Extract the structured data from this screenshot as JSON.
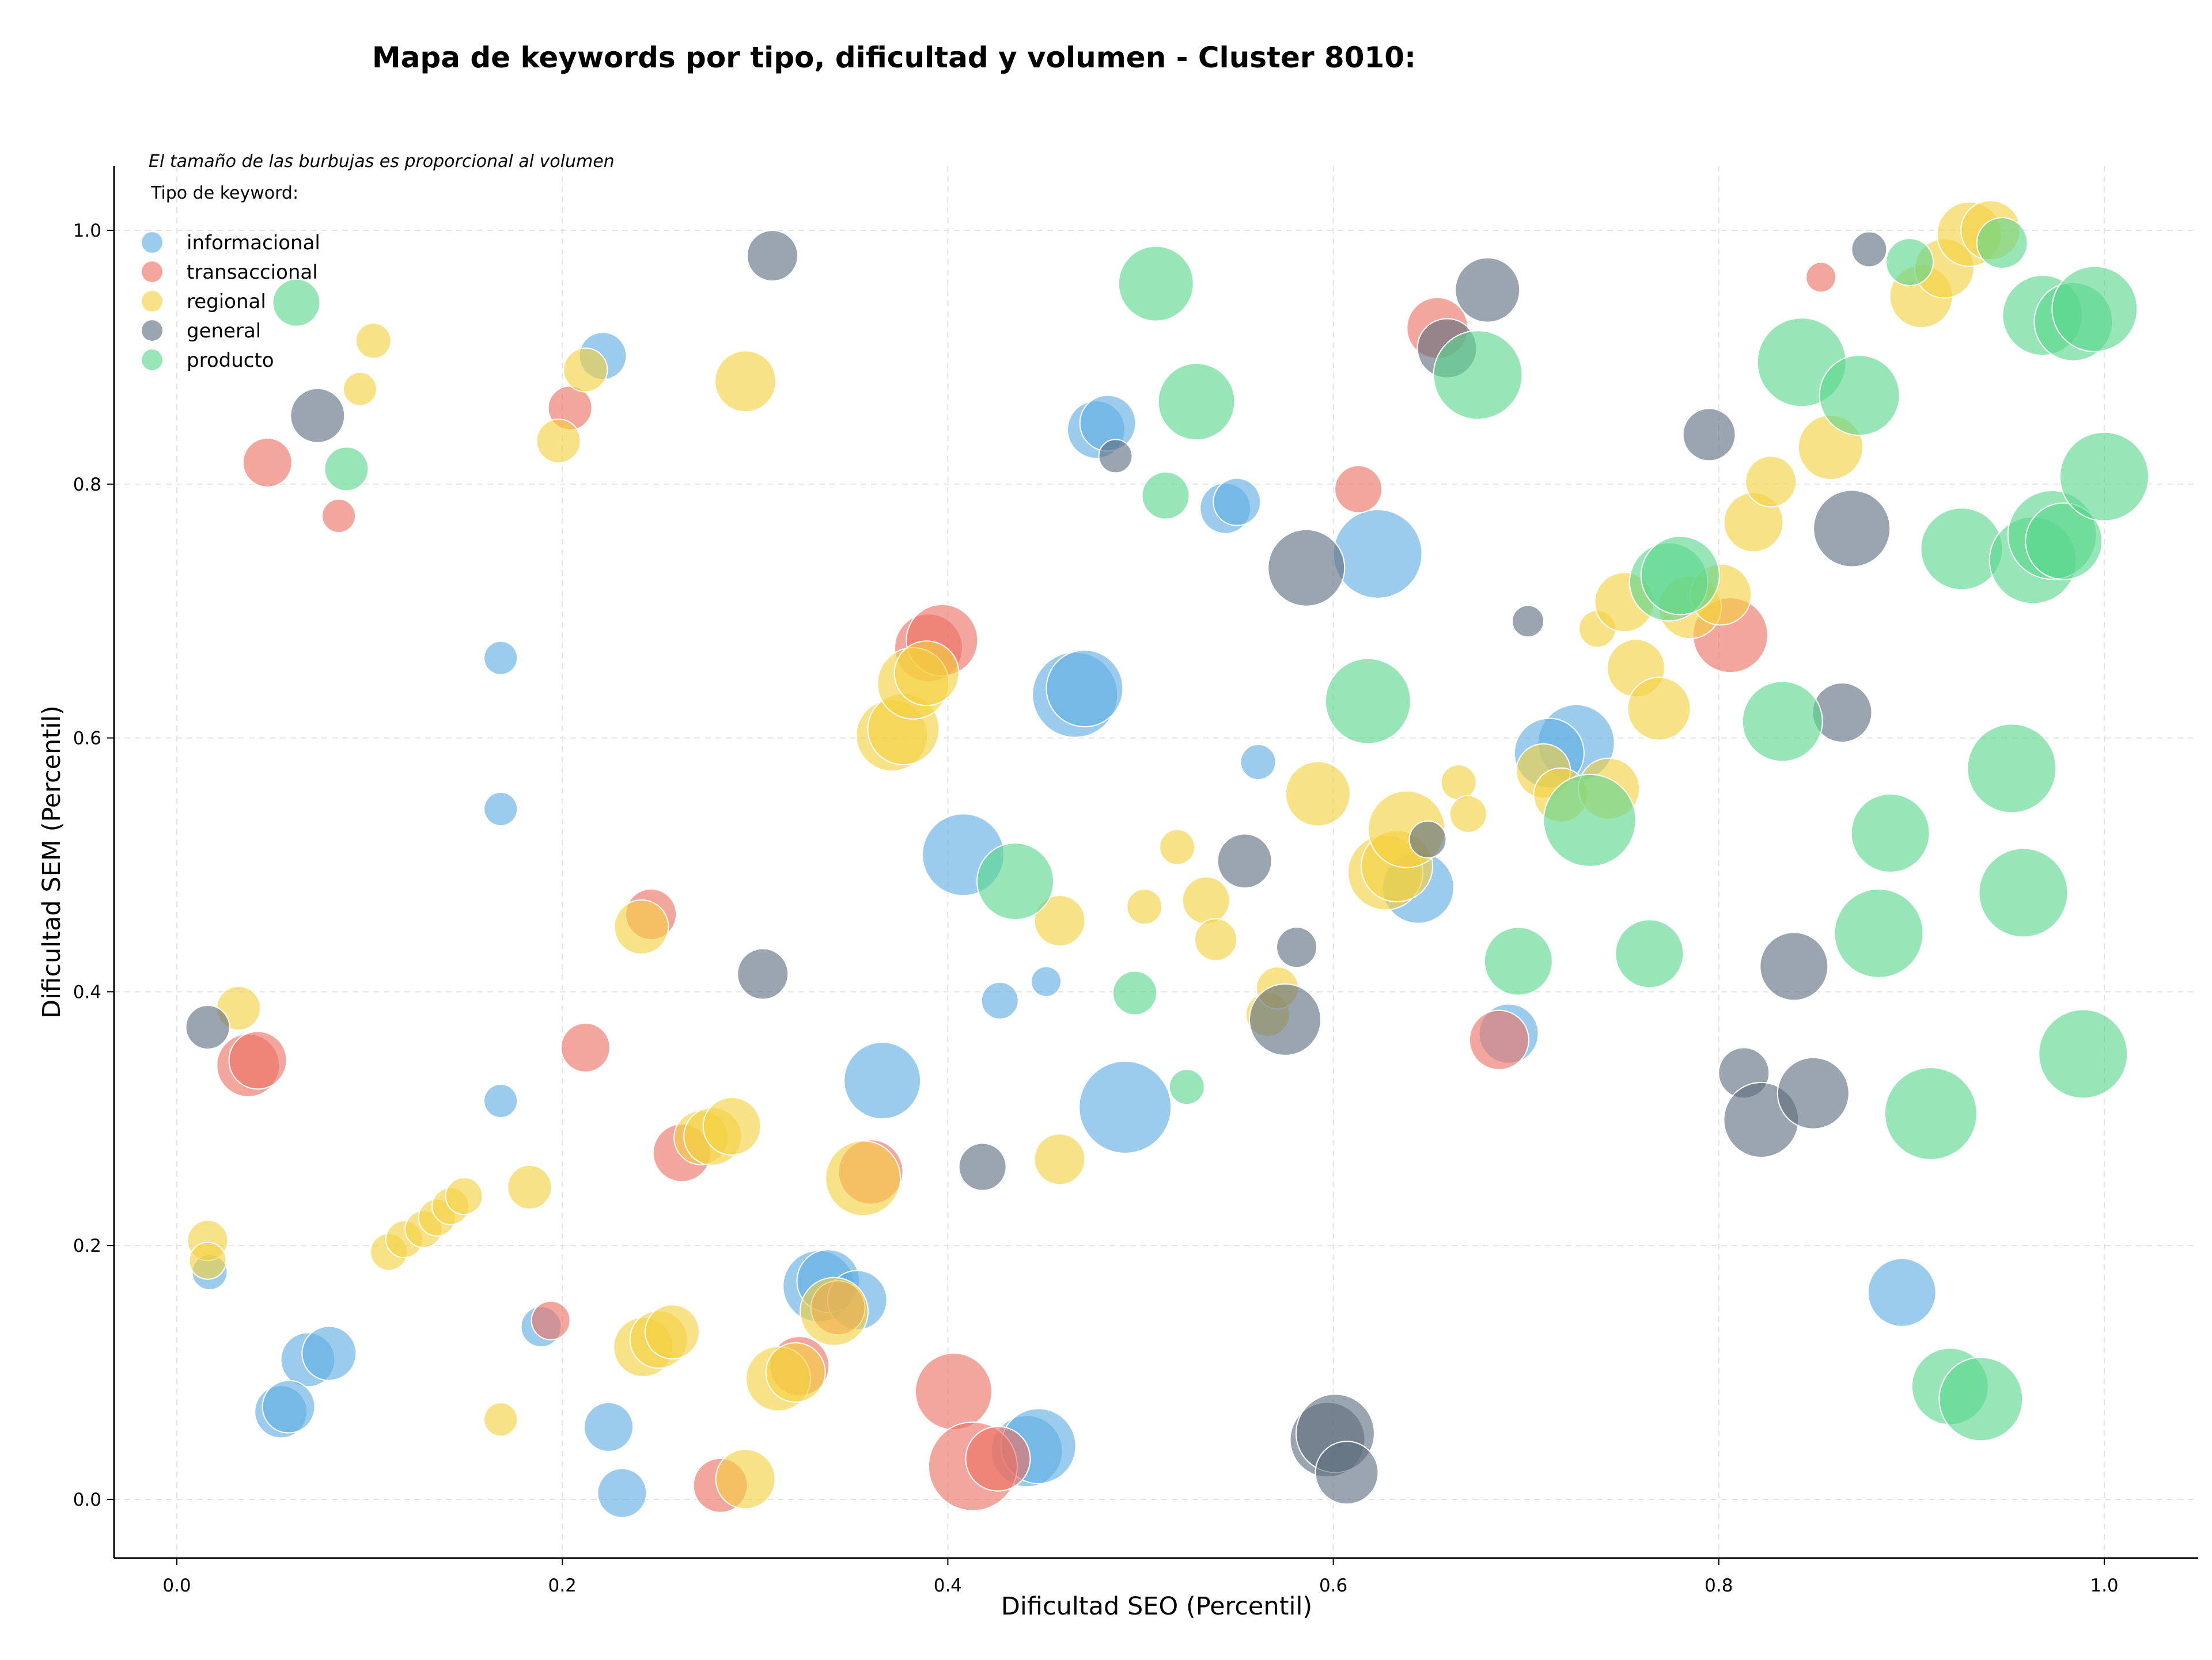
{
  "chart_data": {
    "type": "scatter",
    "title": "Mapa de keywords por tipo, dificultad y volumen - Cluster 8010:",
    "xlabel": "Dificultad SEO (Percentil)",
    "ylabel": "Dificultad SEM (Percentil)",
    "xlim": [
      -0.033,
      1.048
    ],
    "ylim": [
      -0.044,
      1.05
    ],
    "x_ticks": [
      "0.0",
      "0.2",
      "0.4",
      "0.6",
      "0.8",
      "1.0"
    ],
    "y_ticks": [
      "0.0",
      "0.2",
      "0.4",
      "0.6",
      "0.8",
      "1.0"
    ],
    "grid": true,
    "annotation": "El tamaño de las burbujas es proporcional al volumen",
    "legend": {
      "title": "Tipo de keyword:",
      "position": "top-left",
      "entries": [
        "informacional",
        "transaccional",
        "regional",
        "general",
        "producto"
      ]
    },
    "series": [
      {
        "name": "informacional",
        "color": "#5dade2",
        "points": [
          {
            "x": 0.221,
            "y": 0.901,
            "size": 1.6
          },
          {
            "x": 0.168,
            "y": 0.663,
            "size": 0.8
          },
          {
            "x": 0.168,
            "y": 0.544,
            "size": 0.8
          },
          {
            "x": 0.168,
            "y": 0.314,
            "size": 0.8
          },
          {
            "x": 0.017,
            "y": 0.179,
            "size": 0.9
          },
          {
            "x": 0.068,
            "y": 0.11,
            "size": 2.0
          },
          {
            "x": 0.079,
            "y": 0.115,
            "size": 2.0
          },
          {
            "x": 0.054,
            "y": 0.069,
            "size": 1.9
          },
          {
            "x": 0.058,
            "y": 0.073,
            "size": 1.9
          },
          {
            "x": 0.189,
            "y": 0.136,
            "size": 1.2
          },
          {
            "x": 0.224,
            "y": 0.057,
            "size": 1.7
          },
          {
            "x": 0.231,
            "y": 0.005,
            "size": 1.7
          },
          {
            "x": 0.333,
            "y": 0.168,
            "size": 3.0
          },
          {
            "x": 0.338,
            "y": 0.172,
            "size": 2.5
          },
          {
            "x": 0.353,
            "y": 0.157,
            "size": 2.3
          },
          {
            "x": 0.366,
            "y": 0.33,
            "size": 3.3
          },
          {
            "x": 0.408,
            "y": 0.508,
            "size": 3.6
          },
          {
            "x": 0.427,
            "y": 0.393,
            "size": 1.0
          },
          {
            "x": 0.451,
            "y": 0.408,
            "size": 0.6
          },
          {
            "x": 0.441,
            "y": 0.038,
            "size": 3.0
          },
          {
            "x": 0.447,
            "y": 0.042,
            "size": 3.2
          },
          {
            "x": 0.466,
            "y": 0.634,
            "size": 3.8
          },
          {
            "x": 0.471,
            "y": 0.639,
            "size": 3.3
          },
          {
            "x": 0.477,
            "y": 0.843,
            "size": 2.2
          },
          {
            "x": 0.483,
            "y": 0.848,
            "size": 2.1
          },
          {
            "x": 0.492,
            "y": 0.309,
            "size": 4.2
          },
          {
            "x": 0.544,
            "y": 0.781,
            "size": 1.8
          },
          {
            "x": 0.55,
            "y": 0.786,
            "size": 1.6
          },
          {
            "x": 0.561,
            "y": 0.581,
            "size": 0.9
          },
          {
            "x": 0.623,
            "y": 0.745,
            "size": 4.0
          },
          {
            "x": 0.644,
            "y": 0.482,
            "size": 3.0
          },
          {
            "x": 0.691,
            "y": 0.367,
            "size": 2.3
          },
          {
            "x": 0.726,
            "y": 0.596,
            "size": 3.3
          },
          {
            "x": 0.712,
            "y": 0.588,
            "size": 2.9
          },
          {
            "x": 0.895,
            "y": 0.163,
            "size": 2.8
          }
        ]
      },
      {
        "name": "transaccional",
        "color": "#ec7063",
        "points": [
          {
            "x": 0.047,
            "y": 0.817,
            "size": 1.7
          },
          {
            "x": 0.084,
            "y": 0.775,
            "size": 0.8
          },
          {
            "x": 0.204,
            "y": 0.86,
            "size": 1.4
          },
          {
            "x": 0.037,
            "y": 0.342,
            "size": 2.5
          },
          {
            "x": 0.042,
            "y": 0.346,
            "size": 2.2
          },
          {
            "x": 0.212,
            "y": 0.356,
            "size": 1.7
          },
          {
            "x": 0.246,
            "y": 0.461,
            "size": 1.8
          },
          {
            "x": 0.262,
            "y": 0.273,
            "size": 2.2
          },
          {
            "x": 0.194,
            "y": 0.141,
            "size": 1.1
          },
          {
            "x": 0.282,
            "y": 0.011,
            "size": 2.0
          },
          {
            "x": 0.323,
            "y": 0.105,
            "size": 2.3
          },
          {
            "x": 0.343,
            "y": 0.151,
            "size": 2.0
          },
          {
            "x": 0.36,
            "y": 0.258,
            "size": 2.6
          },
          {
            "x": 0.39,
            "y": 0.671,
            "size": 2.8
          },
          {
            "x": 0.397,
            "y": 0.677,
            "size": 3.0
          },
          {
            "x": 0.403,
            "y": 0.085,
            "size": 3.3
          },
          {
            "x": 0.413,
            "y": 0.026,
            "size": 4.0
          },
          {
            "x": 0.426,
            "y": 0.032,
            "size": 2.6
          },
          {
            "x": 0.613,
            "y": 0.796,
            "size": 1.6
          },
          {
            "x": 0.654,
            "y": 0.923,
            "size": 2.4
          },
          {
            "x": 0.686,
            "y": 0.362,
            "size": 2.3
          },
          {
            "x": 0.806,
            "y": 0.681,
            "size": 3.2
          },
          {
            "x": 0.853,
            "y": 0.963,
            "size": 0.6
          }
        ]
      },
      {
        "name": "regional",
        "color": "#f4d03f",
        "points": [
          {
            "x": 0.095,
            "y": 0.875,
            "size": 0.8
          },
          {
            "x": 0.102,
            "y": 0.913,
            "size": 0.9
          },
          {
            "x": 0.212,
            "y": 0.89,
            "size": 1.4
          },
          {
            "x": 0.198,
            "y": 0.834,
            "size": 1.4
          },
          {
            "x": 0.295,
            "y": 0.881,
            "size": 2.4
          },
          {
            "x": 0.032,
            "y": 0.387,
            "size": 1.4
          },
          {
            "x": 0.016,
            "y": 0.204,
            "size": 1.2
          },
          {
            "x": 0.016,
            "y": 0.188,
            "size": 1.0
          },
          {
            "x": 0.11,
            "y": 0.195,
            "size": 1.0
          },
          {
            "x": 0.118,
            "y": 0.205,
            "size": 1.0
          },
          {
            "x": 0.128,
            "y": 0.213,
            "size": 1.0
          },
          {
            "x": 0.135,
            "y": 0.222,
            "size": 1.0
          },
          {
            "x": 0.142,
            "y": 0.231,
            "size": 1.0
          },
          {
            "x": 0.149,
            "y": 0.239,
            "size": 1.0
          },
          {
            "x": 0.183,
            "y": 0.246,
            "size": 1.4
          },
          {
            "x": 0.168,
            "y": 0.063,
            "size": 0.8
          },
          {
            "x": 0.241,
            "y": 0.451,
            "size": 2.0
          },
          {
            "x": 0.242,
            "y": 0.12,
            "size": 2.3
          },
          {
            "x": 0.25,
            "y": 0.126,
            "size": 2.2
          },
          {
            "x": 0.257,
            "y": 0.132,
            "size": 2.0
          },
          {
            "x": 0.272,
            "y": 0.285,
            "size": 2.0
          },
          {
            "x": 0.278,
            "y": 0.286,
            "size": 2.2
          },
          {
            "x": 0.288,
            "y": 0.294,
            "size": 2.2
          },
          {
            "x": 0.295,
            "y": 0.016,
            "size": 2.3
          },
          {
            "x": 0.312,
            "y": 0.095,
            "size": 2.6
          },
          {
            "x": 0.321,
            "y": 0.1,
            "size": 2.3
          },
          {
            "x": 0.341,
            "y": 0.148,
            "size": 2.8
          },
          {
            "x": 0.356,
            "y": 0.253,
            "size": 3.2
          },
          {
            "x": 0.371,
            "y": 0.602,
            "size": 3.0
          },
          {
            "x": 0.377,
            "y": 0.607,
            "size": 3.0
          },
          {
            "x": 0.382,
            "y": 0.643,
            "size": 3.0
          },
          {
            "x": 0.389,
            "y": 0.651,
            "size": 2.6
          },
          {
            "x": 0.458,
            "y": 0.456,
            "size": 1.8
          },
          {
            "x": 0.458,
            "y": 0.268,
            "size": 1.8
          },
          {
            "x": 0.502,
            "y": 0.467,
            "size": 0.9
          },
          {
            "x": 0.519,
            "y": 0.514,
            "size": 0.9
          },
          {
            "x": 0.534,
            "y": 0.472,
            "size": 1.6
          },
          {
            "x": 0.539,
            "y": 0.441,
            "size": 1.3
          },
          {
            "x": 0.566,
            "y": 0.382,
            "size": 1.4
          },
          {
            "x": 0.571,
            "y": 0.403,
            "size": 1.3
          },
          {
            "x": 0.592,
            "y": 0.556,
            "size": 2.6
          },
          {
            "x": 0.627,
            "y": 0.494,
            "size": 3.2
          },
          {
            "x": 0.633,
            "y": 0.499,
            "size": 3.0
          },
          {
            "x": 0.638,
            "y": 0.528,
            "size": 3.3
          },
          {
            "x": 0.665,
            "y": 0.565,
            "size": 0.9
          },
          {
            "x": 0.67,
            "y": 0.54,
            "size": 1.0
          },
          {
            "x": 0.709,
            "y": 0.574,
            "size": 2.0
          },
          {
            "x": 0.718,
            "y": 0.555,
            "size": 2.0
          },
          {
            "x": 0.737,
            "y": 0.686,
            "size": 1.0
          },
          {
            "x": 0.743,
            "y": 0.56,
            "size": 2.4
          },
          {
            "x": 0.751,
            "y": 0.707,
            "size": 2.3
          },
          {
            "x": 0.757,
            "y": 0.655,
            "size": 2.2
          },
          {
            "x": 0.769,
            "y": 0.623,
            "size": 2.5
          },
          {
            "x": 0.785,
            "y": 0.703,
            "size": 2.5
          },
          {
            "x": 0.801,
            "y": 0.713,
            "size": 2.4
          },
          {
            "x": 0.818,
            "y": 0.77,
            "size": 2.3
          },
          {
            "x": 0.827,
            "y": 0.802,
            "size": 1.8
          },
          {
            "x": 0.858,
            "y": 0.829,
            "size": 2.6
          },
          {
            "x": 0.905,
            "y": 0.948,
            "size": 2.5
          },
          {
            "x": 0.917,
            "y": 0.97,
            "size": 2.3
          },
          {
            "x": 0.93,
            "y": 0.997,
            "size": 2.6
          },
          {
            "x": 0.941,
            "y": 1.0,
            "size": 2.3
          }
        ]
      },
      {
        "name": "general",
        "color": "#5d6d7e",
        "points": [
          {
            "x": 0.073,
            "y": 0.854,
            "size": 2.0
          },
          {
            "x": 0.309,
            "y": 0.98,
            "size": 1.8
          },
          {
            "x": 0.016,
            "y": 0.372,
            "size": 1.4
          },
          {
            "x": 0.304,
            "y": 0.414,
            "size": 1.8
          },
          {
            "x": 0.418,
            "y": 0.262,
            "size": 1.6
          },
          {
            "x": 0.487,
            "y": 0.822,
            "size": 0.8
          },
          {
            "x": 0.554,
            "y": 0.503,
            "size": 2.0
          },
          {
            "x": 0.581,
            "y": 0.435,
            "size": 1.2
          },
          {
            "x": 0.575,
            "y": 0.378,
            "size": 3.0
          },
          {
            "x": 0.586,
            "y": 0.734,
            "size": 3.3
          },
          {
            "x": 0.597,
            "y": 0.047,
            "size": 3.2
          },
          {
            "x": 0.601,
            "y": 0.052,
            "size": 3.4
          },
          {
            "x": 0.607,
            "y": 0.021,
            "size": 2.5
          },
          {
            "x": 0.649,
            "y": 0.52,
            "size": 1.0
          },
          {
            "x": 0.659,
            "y": 0.907,
            "size": 2.3
          },
          {
            "x": 0.68,
            "y": 0.953,
            "size": 2.6
          },
          {
            "x": 0.701,
            "y": 0.692,
            "size": 0.7
          },
          {
            "x": 0.795,
            "y": 0.839,
            "size": 1.9
          },
          {
            "x": 0.813,
            "y": 0.336,
            "size": 1.8
          },
          {
            "x": 0.822,
            "y": 0.299,
            "size": 3.2
          },
          {
            "x": 0.839,
            "y": 0.42,
            "size": 2.8
          },
          {
            "x": 0.849,
            "y": 0.32,
            "size": 3.0
          },
          {
            "x": 0.864,
            "y": 0.62,
            "size": 2.3
          },
          {
            "x": 0.869,
            "y": 0.765,
            "size": 3.3
          },
          {
            "x": 0.878,
            "y": 0.985,
            "size": 0.9
          }
        ]
      },
      {
        "name": "producto",
        "color": "#58d68d",
        "points": [
          {
            "x": 0.062,
            "y": 0.943,
            "size": 1.6
          },
          {
            "x": 0.088,
            "y": 0.812,
            "size": 1.4
          },
          {
            "x": 0.508,
            "y": 0.958,
            "size": 3.2
          },
          {
            "x": 0.529,
            "y": 0.865,
            "size": 3.3
          },
          {
            "x": 0.513,
            "y": 0.791,
            "size": 1.6
          },
          {
            "x": 0.435,
            "y": 0.487,
            "size": 3.3
          },
          {
            "x": 0.497,
            "y": 0.399,
            "size": 1.4
          },
          {
            "x": 0.524,
            "y": 0.325,
            "size": 0.9
          },
          {
            "x": 0.618,
            "y": 0.629,
            "size": 3.8
          },
          {
            "x": 0.675,
            "y": 0.886,
            "size": 4.0
          },
          {
            "x": 0.696,
            "y": 0.424,
            "size": 2.8
          },
          {
            "x": 0.733,
            "y": 0.535,
            "size": 4.2
          },
          {
            "x": 0.764,
            "y": 0.43,
            "size": 2.8
          },
          {
            "x": 0.774,
            "y": 0.723,
            "size": 3.4
          },
          {
            "x": 0.78,
            "y": 0.728,
            "size": 3.4
          },
          {
            "x": 0.833,
            "y": 0.613,
            "size": 3.5
          },
          {
            "x": 0.843,
            "y": 0.896,
            "size": 4.0
          },
          {
            "x": 0.873,
            "y": 0.87,
            "size": 3.5
          },
          {
            "x": 0.883,
            "y": 0.446,
            "size": 4.0
          },
          {
            "x": 0.889,
            "y": 0.525,
            "size": 3.4
          },
          {
            "x": 0.899,
            "y": 0.975,
            "size": 1.6
          },
          {
            "x": 0.91,
            "y": 0.304,
            "size": 4.2
          },
          {
            "x": 0.92,
            "y": 0.089,
            "size": 3.3
          },
          {
            "x": 0.926,
            "y": 0.749,
            "size": 3.6
          },
          {
            "x": 0.936,
            "y": 0.079,
            "size": 3.7
          },
          {
            "x": 0.947,
            "y": 0.99,
            "size": 1.8
          },
          {
            "x": 0.952,
            "y": 0.576,
            "size": 4.0
          },
          {
            "x": 0.958,
            "y": 0.478,
            "size": 4.0
          },
          {
            "x": 0.963,
            "y": 0.74,
            "size": 3.9
          },
          {
            "x": 0.968,
            "y": 0.933,
            "size": 3.5
          },
          {
            "x": 0.973,
            "y": 0.76,
            "size": 4.0
          },
          {
            "x": 0.979,
            "y": 0.755,
            "size": 3.3
          },
          {
            "x": 0.984,
            "y": 0.928,
            "size": 3.4
          },
          {
            "x": 0.989,
            "y": 0.351,
            "size": 4.0
          },
          {
            "x": 0.995,
            "y": 0.938,
            "size": 3.8
          },
          {
            "x": 1.0,
            "y": 0.806,
            "size": 4.0
          }
        ]
      }
    ]
  }
}
